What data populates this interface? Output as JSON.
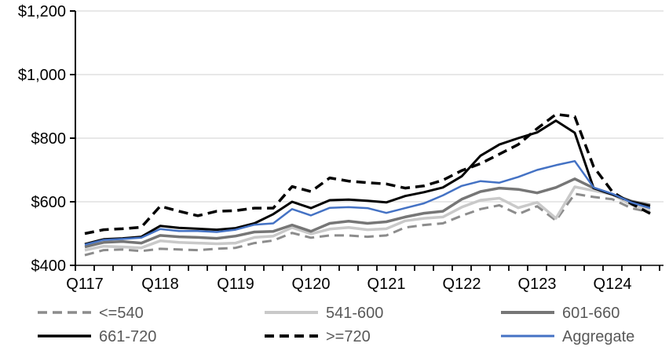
{
  "chart_data": {
    "type": "line",
    "x": [
      "Q117",
      "Q217",
      "Q317",
      "Q417",
      "Q118",
      "Q218",
      "Q318",
      "Q418",
      "Q119",
      "Q219",
      "Q319",
      "Q419",
      "Q120",
      "Q220",
      "Q320",
      "Q420",
      "Q121",
      "Q221",
      "Q321",
      "Q421",
      "Q122",
      "Q222",
      "Q322",
      "Q422",
      "Q123",
      "Q223",
      "Q323",
      "Q423",
      "Q124",
      "Q224",
      "Q324"
    ],
    "x_label_indices": [
      0,
      4,
      8,
      12,
      16,
      20,
      24,
      28
    ],
    "x_tick_labels": [
      "Q117",
      "Q118",
      "Q119",
      "Q120",
      "Q121",
      "Q122",
      "Q123",
      "Q124"
    ],
    "y_ticks": [
      400,
      600,
      800,
      1000,
      1200
    ],
    "y_tick_labels": [
      "$400",
      "$600",
      "$800",
      "$1,000",
      "$1,200"
    ],
    "ylim": [
      400,
      1200
    ],
    "grid": "horizontal-on",
    "legend_position": "bottom",
    "title": "",
    "xlabel": "",
    "ylabel": "",
    "series": [
      {
        "name": "<=540",
        "color": "#8C8C8C",
        "style": "dashed",
        "width": 3,
        "values": [
          432,
          448,
          450,
          445,
          452,
          450,
          448,
          452,
          455,
          470,
          478,
          502,
          487,
          494,
          494,
          490,
          494,
          519,
          527,
          532,
          556,
          577,
          589,
          561,
          586,
          541,
          625,
          615,
          608,
          580,
          567
        ]
      },
      {
        "name": "541-600",
        "color": "#C9C9C9",
        "style": "solid",
        "width": 3.5,
        "values": [
          448,
          460,
          458,
          455,
          477,
          472,
          470,
          468,
          470,
          488,
          492,
          519,
          499,
          514,
          519,
          512,
          515,
          540,
          548,
          552,
          583,
          605,
          611,
          581,
          598,
          548,
          647,
          635,
          623,
          590,
          575
        ]
      },
      {
        "name": "601-660",
        "color": "#767676",
        "style": "solid",
        "width": 3.5,
        "values": [
          458,
          472,
          475,
          470,
          494,
          490,
          488,
          485,
          492,
          505,
          507,
          527,
          507,
          532,
          539,
          532,
          537,
          552,
          564,
          570,
          608,
          632,
          643,
          639,
          628,
          645,
          672,
          643,
          623,
          602,
          590
        ]
      },
      {
        "name": "661-720",
        "color": "#000000",
        "style": "solid",
        "width": 3,
        "values": [
          467,
          482,
          485,
          490,
          524,
          518,
          515,
          512,
          517,
          532,
          561,
          600,
          580,
          605,
          607,
          603,
          598,
          618,
          630,
          645,
          680,
          745,
          780,
          800,
          818,
          855,
          817,
          643,
          623,
          600,
          587
        ]
      },
      {
        "name": ">=720",
        "color": "#000000",
        "style": "dashed",
        "width": 3.5,
        "values": [
          500,
          512,
          515,
          520,
          586,
          570,
          556,
          570,
          572,
          580,
          580,
          648,
          632,
          675,
          665,
          660,
          656,
          643,
          650,
          668,
          698,
          720,
          750,
          780,
          830,
          875,
          868,
          710,
          631,
          594,
          563
        ]
      },
      {
        "name": "Aggregate",
        "color": "#4472C4",
        "style": "solid",
        "width": 2.5,
        "values": [
          465,
          480,
          483,
          487,
          514,
          508,
          508,
          505,
          512,
          528,
          532,
          577,
          557,
          581,
          583,
          580,
          565,
          580,
          595,
          620,
          650,
          665,
          660,
          678,
          700,
          715,
          728,
          645,
          625,
          598,
          580
        ]
      }
    ],
    "legend": {
      "rows": [
        [
          "<=540",
          "541-600",
          "601-660"
        ],
        [
          "661-720",
          ">=720",
          "Aggregate"
        ]
      ]
    }
  },
  "style": {
    "gridline_color": "#D9D9D9",
    "axis_color": "#000000",
    "axis_label_color": "#000000",
    "legend_text_color": "#595959",
    "background": "#FFFFFF"
  }
}
